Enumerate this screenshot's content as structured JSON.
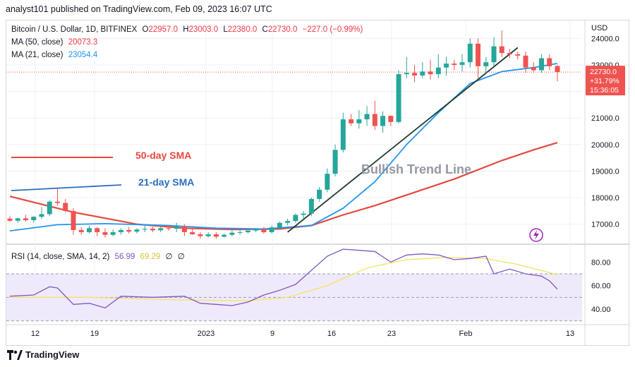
{
  "header": {
    "publish_line": "analyst101 published on TradingView.com, Feb 09, 2023 16:07 UTC"
  },
  "legend": {
    "symbol": "Bitcoin / U.S. Dollar, 1D, BITFINEX",
    "open_label": "O",
    "open": "22957.0",
    "high_label": "H",
    "high": "23003.0",
    "low_label": "L",
    "low": "22380.0",
    "close_label": "C",
    "close": "22730.0",
    "change": "−227.0 (−0.99%)",
    "ma50_label": "MA (50, close)",
    "ma50_value": "20073.3",
    "ma21_label": "MA (21, close)",
    "ma21_value": "23054.4",
    "rsi_label": "RSI (14, close, SMA, 14, 2)",
    "rsi_value": "56.99",
    "rsi_sma_value": "69.29",
    "rsi_empty1": "∅",
    "rsi_empty2": "∅"
  },
  "annotations": {
    "sma50_label": "50-day SMA",
    "sma21_label": "21-day SMA",
    "trend_label": "Bullish Trend Line"
  },
  "price_axis": {
    "currency": "USD",
    "price_tag": "22730.0",
    "change_tag": "+31.79%",
    "countdown_tag": "15:36:05"
  },
  "brand": {
    "name": "TradingView"
  },
  "colors": {
    "up": "#26a69a",
    "down": "#ef5350",
    "ma50": "#e8483f",
    "ma21": "#2196f3",
    "rsi": "#7e57c2",
    "rsi_sma": "#f7e26b",
    "trend": "#1e3a2a",
    "band": "#efeafb"
  },
  "chart_data": [
    {
      "type": "candlestick",
      "title": "Bitcoin / U.S. Dollar, 1D, BITFINEX",
      "y_unit": "USD",
      "x_ticks": [
        "12",
        "19",
        "2023",
        "9",
        "16",
        "23",
        "Feb",
        "13"
      ],
      "y_ticks": [
        17000,
        18000,
        19000,
        20000,
        21000,
        22000,
        23000,
        24000
      ],
      "ylim": [
        16300,
        24700
      ],
      "candles": [
        [
          17210,
          17300,
          17080,
          17130
        ],
        [
          17130,
          17250,
          17050,
          17220
        ],
        [
          17220,
          17350,
          17100,
          17150
        ],
        [
          17150,
          17300,
          17050,
          17280
        ],
        [
          17280,
          17650,
          17200,
          17380
        ],
        [
          17380,
          17900,
          17300,
          17850
        ],
        [
          17850,
          18350,
          17700,
          17800
        ],
        [
          17800,
          17950,
          17450,
          17500
        ],
        [
          17500,
          17600,
          16600,
          16780
        ],
        [
          16780,
          16900,
          16600,
          16700
        ],
        [
          16700,
          16950,
          16650,
          16850
        ],
        [
          16850,
          16900,
          16550,
          16700
        ],
        [
          16700,
          16850,
          16500,
          16600
        ],
        [
          16600,
          16800,
          16550,
          16700
        ],
        [
          16700,
          16850,
          16600,
          16780
        ],
        [
          16780,
          16900,
          16650,
          16720
        ],
        [
          16720,
          16850,
          16650,
          16800
        ],
        [
          16800,
          16950,
          16700,
          16830
        ],
        [
          16830,
          16900,
          16700,
          16770
        ],
        [
          16770,
          16900,
          16700,
          16850
        ],
        [
          16850,
          16950,
          16750,
          16830
        ],
        [
          16830,
          17050,
          16700,
          16920
        ],
        [
          16920,
          17000,
          16550,
          16700
        ],
        [
          16700,
          16850,
          16600,
          16620
        ],
        [
          16620,
          16700,
          16450,
          16550
        ],
        [
          16550,
          16700,
          16500,
          16620
        ],
        [
          16620,
          16700,
          16450,
          16530
        ],
        [
          16530,
          16650,
          16500,
          16600
        ],
        [
          16600,
          16750,
          16550,
          16680
        ],
        [
          16680,
          16800,
          16600,
          16700
        ],
        [
          16700,
          16800,
          16650,
          16760
        ],
        [
          16760,
          16850,
          16700,
          16820
        ],
        [
          16820,
          16900,
          16650,
          16700
        ],
        [
          16700,
          16950,
          16650,
          16880
        ],
        [
          16880,
          17100,
          16800,
          17050
        ],
        [
          17050,
          17200,
          16950,
          17120
        ],
        [
          17120,
          17400,
          17050,
          17350
        ],
        [
          17350,
          17500,
          17200,
          17400
        ],
        [
          17400,
          18000,
          17300,
          17950
        ],
        [
          17950,
          18400,
          17850,
          18300
        ],
        [
          18300,
          19100,
          18200,
          18900
        ],
        [
          18900,
          20000,
          18800,
          19800
        ],
        [
          19800,
          21200,
          19700,
          20950
        ],
        [
          20950,
          21150,
          20700,
          20800
        ],
        [
          20800,
          21300,
          20600,
          20950
        ],
        [
          20950,
          21450,
          20700,
          21150
        ],
        [
          21150,
          21650,
          20550,
          20700
        ],
        [
          20700,
          21250,
          20450,
          21080
        ],
        [
          21080,
          21100,
          20700,
          20850
        ],
        [
          20850,
          22800,
          20800,
          22650
        ],
        [
          22650,
          23300,
          22500,
          22700
        ],
        [
          22700,
          23000,
          22350,
          22600
        ],
        [
          22600,
          23100,
          22500,
          22750
        ],
        [
          22750,
          23200,
          22450,
          22650
        ],
        [
          22650,
          23400,
          22500,
          22900
        ],
        [
          22900,
          23300,
          22600,
          23050
        ],
        [
          23050,
          23200,
          22800,
          23000
        ],
        [
          23000,
          23400,
          22750,
          23100
        ],
        [
          23100,
          24000,
          22900,
          23800
        ],
        [
          23800,
          24000,
          22500,
          22950
        ],
        [
          22950,
          23300,
          22700,
          23100
        ],
        [
          23100,
          24050,
          22950,
          23700
        ],
        [
          23700,
          24300,
          23300,
          23450
        ],
        [
          23450,
          23600,
          23250,
          23400
        ],
        [
          23400,
          23500,
          23200,
          23350
        ],
        [
          23350,
          23500,
          22700,
          22900
        ],
        [
          22900,
          23100,
          22700,
          22800
        ],
        [
          22800,
          23400,
          22700,
          23250
        ],
        [
          23250,
          23400,
          22800,
          22950
        ],
        [
          22957,
          23003,
          22380,
          22730
        ]
      ],
      "ma50": [
        [
          0,
          18050
        ],
        [
          8,
          17450
        ],
        [
          16,
          17000
        ],
        [
          22,
          16850
        ],
        [
          28,
          16800
        ],
        [
          34,
          16820
        ],
        [
          38,
          16950
        ],
        [
          42,
          17350
        ],
        [
          46,
          17700
        ],
        [
          50,
          18100
        ],
        [
          56,
          18700
        ],
        [
          62,
          19400
        ],
        [
          66,
          19800
        ],
        [
          69,
          20073
        ]
      ],
      "ma21": [
        [
          0,
          16750
        ],
        [
          6,
          16980
        ],
        [
          12,
          17020
        ],
        [
          20,
          16950
        ],
        [
          26,
          16850
        ],
        [
          32,
          16820
        ],
        [
          38,
          16950
        ],
        [
          42,
          17600
        ],
        [
          46,
          18600
        ],
        [
          50,
          20000
        ],
        [
          54,
          21200
        ],
        [
          58,
          22300
        ],
        [
          62,
          22750
        ],
        [
          66,
          22900
        ],
        [
          69,
          23054
        ]
      ],
      "trend_line": [
        [
          35,
          16700
        ],
        [
          64,
          23650
        ]
      ]
    },
    {
      "type": "line",
      "title": "RSI (14, close, SMA, 14, 2)",
      "y_ticks": [
        40,
        60,
        80
      ],
      "ylim": [
        28,
        94
      ],
      "band": [
        30,
        70
      ],
      "midline": 50,
      "rsi": [
        [
          0,
          51
        ],
        [
          3,
          52
        ],
        [
          5,
          59
        ],
        [
          6,
          58
        ],
        [
          8,
          44
        ],
        [
          10,
          45
        ],
        [
          12,
          41
        ],
        [
          14,
          51
        ],
        [
          18,
          50
        ],
        [
          22,
          51
        ],
        [
          24,
          45
        ],
        [
          26,
          44
        ],
        [
          28,
          43
        ],
        [
          30,
          46
        ],
        [
          32,
          52
        ],
        [
          34,
          56
        ],
        [
          36,
          61
        ],
        [
          38,
          73
        ],
        [
          40,
          85
        ],
        [
          42,
          91
        ],
        [
          44,
          90
        ],
        [
          46,
          89
        ],
        [
          48,
          80
        ],
        [
          50,
          86
        ],
        [
          52,
          87
        ],
        [
          54,
          86
        ],
        [
          56,
          82
        ],
        [
          58,
          83
        ],
        [
          60,
          85
        ],
        [
          61,
          70
        ],
        [
          63,
          74
        ],
        [
          65,
          70
        ],
        [
          67,
          68
        ],
        [
          68,
          64
        ],
        [
          69,
          57
        ]
      ],
      "rsi_sma": [
        [
          0,
          50
        ],
        [
          10,
          50
        ],
        [
          20,
          48
        ],
        [
          30,
          47
        ],
        [
          35,
          50
        ],
        [
          40,
          60
        ],
        [
          45,
          75
        ],
        [
          50,
          82
        ],
        [
          55,
          84
        ],
        [
          60,
          83
        ],
        [
          64,
          78
        ],
        [
          69,
          69.3
        ]
      ]
    }
  ]
}
